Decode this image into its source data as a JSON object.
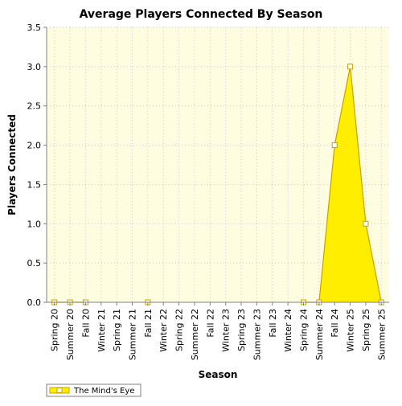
{
  "chart_data": {
    "type": "area",
    "title": "Average Players Connected By Season",
    "xlabel": "Season",
    "ylabel": "Players Connected",
    "categories": [
      "Spring 20",
      "Summer 20",
      "Fall 20",
      "Winter 21",
      "Spring 21",
      "Summer 21",
      "Fall 21",
      "Winter 22",
      "Spring 22",
      "Summer 22",
      "Fall 22",
      "Winter 23",
      "Spring 23",
      "Summer 23",
      "Fall 23",
      "Winter 24",
      "Spring 24",
      "Summer 24",
      "Fall 24",
      "Winter 25",
      "Spring 25",
      "Summer 25"
    ],
    "series": [
      {
        "name": "The Mind's Eye",
        "values": [
          0,
          0,
          0,
          null,
          null,
          null,
          0,
          null,
          null,
          null,
          null,
          null,
          null,
          null,
          null,
          null,
          0,
          0,
          2,
          3,
          1,
          0
        ],
        "color": "#ffee00",
        "line_color": "#c8a000"
      }
    ],
    "ylim": [
      0,
      3.5
    ],
    "yticks": [
      "0.0",
      "0.5",
      "1.0",
      "1.5",
      "2.0",
      "2.5",
      "3.0",
      "3.5"
    ],
    "grid": true,
    "legend_position": "bottom-left",
    "plot_background": "#fffde0"
  }
}
